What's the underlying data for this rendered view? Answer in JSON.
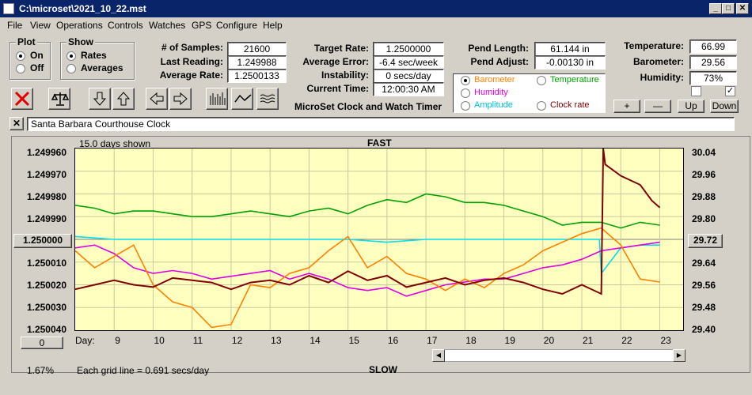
{
  "window": {
    "title": "C:\\microset\\2021_10_22.mst",
    "min": "_",
    "max": "□",
    "close": "✕"
  },
  "menu": [
    "File",
    "View",
    "Operations",
    "Controls",
    "Watches",
    "GPS",
    "Configure",
    "Help"
  ],
  "plot_group": {
    "title": "Plot",
    "options": [
      "On",
      "Off"
    ],
    "selected": "On"
  },
  "show_group": {
    "title": "Show",
    "options": [
      "Rates",
      "Averages"
    ],
    "selected": "Rates"
  },
  "stats": {
    "samples_label": "# of Samples:",
    "samples": "21600",
    "last_label": "Last Reading:",
    "last": "1.249988",
    "avg_label": "Average Rate:",
    "avg": "1.2500133",
    "target_label": "Target Rate:",
    "target": "1.2500000",
    "error_label": "Average Error:",
    "error": "-6.4 sec/week",
    "instab_label": "Instability:",
    "instab": "0 secs/day",
    "time_label": "Current Time:",
    "time": "12:00:30 AM",
    "pend_len_label": "Pend Length:",
    "pend_len": "61.144 in",
    "pend_adj_label": "Pend Adjust:",
    "pend_adj": "-0.00130 in",
    "temp_label": "Temperature:",
    "temp": "66.99",
    "baro_label": "Barometer:",
    "baro": "29.56",
    "humid_label": "Humidity:",
    "humid": "73%"
  },
  "app_name": "MicroSet Clock and Watch Timer",
  "legend": [
    {
      "label": "Barometer",
      "color": "#ff8000",
      "selected": true
    },
    {
      "label": "Temperature",
      "color": "#00a000",
      "selected": false
    },
    {
      "label": "Humidity",
      "color": "#e000e0",
      "selected": false
    },
    {
      "label": "Clock rate",
      "color": "#800000",
      "selected": false
    },
    {
      "label": "Amplitude",
      "color": "#00c0e0",
      "selected": false
    }
  ],
  "right_buttons": {
    "plus": "+",
    "minus": "—",
    "up": "Up",
    "down": "Down"
  },
  "right_checks": {
    "left": "",
    "right": "✓"
  },
  "watch": {
    "close": "✕",
    "name": "Santa Barbara Courthouse Clock"
  },
  "chart": {
    "days_shown": "15.0 days shown",
    "top_label": "FAST",
    "bottom_label": "SLOW",
    "left_ticks": [
      "1.249960",
      "1.249970",
      "1.249980",
      "1.249990",
      "1.250000",
      "1.250010",
      "1.250020",
      "1.250030",
      "1.250040"
    ],
    "center_button": "1.250000",
    "right_ticks": [
      "30.04",
      "29.96",
      "29.88",
      "29.80",
      "29.72",
      "29.64",
      "29.56",
      "29.48",
      "29.40"
    ],
    "right_center_button": "29.72",
    "day_label": "Day:",
    "days": [
      "9",
      "10",
      "11",
      "12",
      "13",
      "14",
      "15",
      "16",
      "17",
      "18",
      "19",
      "20",
      "21",
      "22",
      "23"
    ],
    "zero_button": "0",
    "percent": "1.67%",
    "grid_note": "Each grid line = 0.691 secs/day"
  },
  "chart_data": {
    "type": "line",
    "x_range": [
      8,
      23.6
    ],
    "y_left_range": [
      1.24996,
      1.25004
    ],
    "y_right_range": [
      29.4,
      30.04
    ],
    "series": [
      {
        "name": "Temperature",
        "color": "#00a000",
        "x": [
          8,
          8.5,
          9,
          9.5,
          10,
          10.5,
          11,
          11.5,
          12,
          12.5,
          13,
          13.5,
          14,
          14.5,
          15,
          15.5,
          16,
          16.5,
          17,
          17.5,
          18,
          18.5,
          19,
          19.5,
          20,
          20.5,
          21,
          21.5,
          22,
          22.5,
          23
        ],
        "y": [
          29.84,
          29.83,
          29.81,
          29.82,
          29.82,
          29.81,
          29.8,
          29.8,
          29.81,
          29.82,
          29.81,
          29.8,
          29.82,
          29.83,
          29.81,
          29.84,
          29.86,
          29.85,
          29.88,
          29.87,
          29.85,
          29.85,
          29.84,
          29.82,
          29.8,
          29.77,
          29.78,
          29.78,
          29.76,
          29.78,
          29.77
        ]
      },
      {
        "name": "Amplitude",
        "color": "#00e0f0",
        "x": [
          8,
          9,
          10,
          11,
          12,
          13,
          14,
          15,
          16,
          17,
          18,
          19,
          20,
          21,
          21.45,
          21.5,
          22,
          22.5,
          23
        ],
        "y": [
          29.73,
          29.72,
          29.72,
          29.72,
          29.72,
          29.72,
          29.72,
          29.72,
          29.71,
          29.72,
          29.72,
          29.72,
          29.72,
          29.72,
          29.72,
          29.6,
          29.69,
          29.7,
          29.7
        ]
      },
      {
        "name": "Humidity",
        "color": "#e000e0",
        "x": [
          8,
          8.5,
          9,
          9.5,
          10,
          10.5,
          11,
          11.5,
          12,
          12.5,
          13,
          13.5,
          14,
          14.5,
          15,
          15.5,
          16,
          16.5,
          17,
          17.5,
          18,
          18.5,
          19,
          19.5,
          20,
          20.5,
          21,
          21.5,
          22,
          22.5,
          23
        ],
        "y": [
          29.69,
          29.7,
          29.67,
          29.62,
          29.6,
          29.61,
          29.6,
          29.58,
          29.59,
          29.6,
          29.61,
          29.58,
          29.6,
          29.58,
          29.55,
          29.54,
          29.55,
          29.52,
          29.54,
          29.56,
          29.57,
          29.58,
          29.58,
          29.6,
          29.62,
          29.63,
          29.65,
          29.68,
          29.69,
          29.7,
          29.71
        ]
      },
      {
        "name": "Barometer",
        "color": "#ff8000",
        "x": [
          8,
          8.5,
          9,
          9.5,
          10,
          10.5,
          11,
          11.5,
          12,
          12.5,
          13,
          13.5,
          14,
          14.5,
          15,
          15.5,
          16,
          16.5,
          17,
          17.5,
          18,
          18.5,
          19,
          19.5,
          20,
          20.5,
          21,
          21.5,
          22,
          22.5,
          23
        ],
        "y": [
          29.68,
          29.62,
          29.66,
          29.7,
          29.56,
          29.5,
          29.48,
          29.41,
          29.42,
          29.56,
          29.55,
          29.6,
          29.62,
          29.68,
          29.73,
          29.62,
          29.66,
          29.6,
          29.58,
          29.54,
          29.58,
          29.55,
          29.6,
          29.63,
          29.68,
          29.71,
          29.74,
          29.76,
          29.7,
          29.58,
          29.57
        ]
      },
      {
        "name": "Clock rate",
        "color": "#800000",
        "x": [
          8,
          8.5,
          9,
          9.5,
          10,
          10.5,
          11,
          11.5,
          12,
          12.5,
          13,
          13.5,
          14,
          14.5,
          15,
          15.5,
          16,
          16.5,
          17,
          17.5,
          18,
          18.5,
          19,
          19.5,
          20,
          20.5,
          21,
          21.5,
          21.55,
          21.6,
          22,
          22.5,
          22.8,
          23
        ],
        "y": [
          1.250022,
          1.25002,
          1.250018,
          1.25002,
          1.250021,
          1.250017,
          1.250018,
          1.250019,
          1.250022,
          1.250019,
          1.250018,
          1.25002,
          1.250016,
          1.250019,
          1.250014,
          1.250018,
          1.250016,
          1.250021,
          1.250019,
          1.250017,
          1.25002,
          1.250018,
          1.250017,
          1.250019,
          1.250022,
          1.250024,
          1.25002,
          1.250024,
          1.24996,
          1.249967,
          1.249972,
          1.249976,
          1.249983,
          1.249986
        ]
      }
    ]
  }
}
